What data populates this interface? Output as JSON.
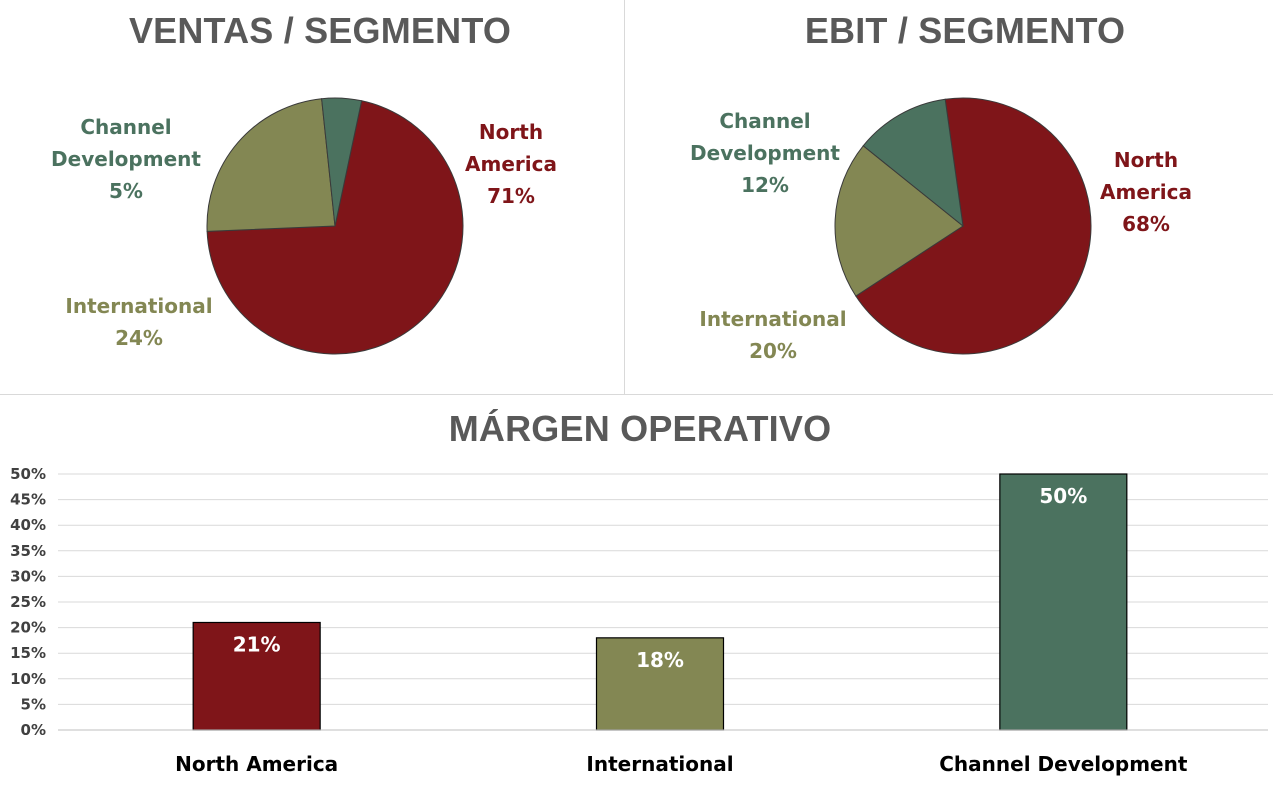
{
  "colors": {
    "north_america": "#7f1519",
    "international": "#838753",
    "channel_development": "#4b725f",
    "title": "#595959",
    "grid": "#d9d9d9"
  },
  "chart_data": [
    {
      "type": "pie",
      "title": "VENTAS / SEGMENTO",
      "slices": [
        {
          "label": "North America",
          "label_lines": [
            "North",
            "America"
          ],
          "value": 71,
          "display": "71%",
          "color": "#7f1519"
        },
        {
          "label": "International",
          "label_lines": [
            "International"
          ],
          "value": 24,
          "display": "24%",
          "color": "#838753"
        },
        {
          "label": "Channel Development",
          "label_lines": [
            "Channel",
            "Development"
          ],
          "value": 5,
          "display": "5%",
          "color": "#4b725f"
        }
      ]
    },
    {
      "type": "pie",
      "title": "EBIT / SEGMENTO",
      "slices": [
        {
          "label": "North America",
          "label_lines": [
            "North",
            "America"
          ],
          "value": 68,
          "display": "68%",
          "color": "#7f1519"
        },
        {
          "label": "International",
          "label_lines": [
            "International"
          ],
          "value": 20,
          "display": "20%",
          "color": "#838753"
        },
        {
          "label": "Channel Development",
          "label_lines": [
            "Channel",
            "Development"
          ],
          "value": 12,
          "display": "12%",
          "color": "#4b725f"
        }
      ]
    },
    {
      "type": "bar",
      "title": "MÁRGEN OPERATIVO",
      "categories": [
        "North America",
        "International",
        "Channel Development"
      ],
      "values": [
        21,
        18,
        50
      ],
      "value_labels": [
        "21%",
        "18%",
        "50%"
      ],
      "colors": [
        "#7f1519",
        "#838753",
        "#4b725f"
      ],
      "ylim": [
        0,
        50
      ],
      "yticks": [
        0,
        5,
        10,
        15,
        20,
        25,
        30,
        35,
        40,
        45,
        50
      ],
      "ytick_labels": [
        "0%",
        "5%",
        "10%",
        "15%",
        "20%",
        "25%",
        "30%",
        "35%",
        "40%",
        "45%",
        "50%"
      ],
      "grid": true
    }
  ]
}
